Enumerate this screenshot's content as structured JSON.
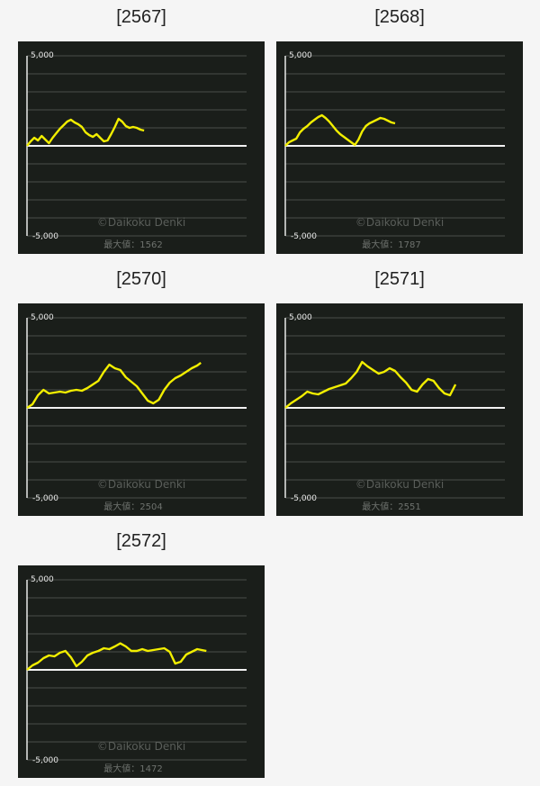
{
  "charts": [
    {
      "id": "2567",
      "title": "[2567]",
      "y_max_label": "5,000",
      "y_min_label": "-5,000",
      "watermark": "©Daikoku Denki",
      "max_label": "最大値：1562",
      "line_color": "#f2ee00"
    },
    {
      "id": "2568",
      "title": "[2568]",
      "y_max_label": "5,000",
      "y_min_label": "-5,000",
      "watermark": "©Daikoku Denki",
      "max_label": "最大値：1787",
      "line_color": "#f2ee00"
    },
    {
      "id": "2570",
      "title": "[2570]",
      "y_max_label": "5,000",
      "y_min_label": "-5,000",
      "watermark": "©Daikoku Denki",
      "max_label": "最大値：2504",
      "line_color": "#f2ee00"
    },
    {
      "id": "2571",
      "title": "[2571]",
      "y_max_label": "5,000",
      "y_min_label": "-5,000",
      "watermark": "©Daikoku Denki",
      "max_label": "最大値：2551",
      "line_color": "#f2ee00"
    },
    {
      "id": "2572",
      "title": "[2572]",
      "y_max_label": "5,000",
      "y_min_label": "-5,000",
      "watermark": "©Daikoku Denki",
      "max_label": "最大値：1472",
      "line_color": "#f2ee00"
    }
  ],
  "chart_data": [
    {
      "type": "line",
      "title": "[2567]",
      "ylim": [
        -5000,
        5000
      ],
      "grid": true,
      "series": [
        {
          "x": [
            0,
            4,
            8,
            12,
            16,
            20,
            24,
            28,
            32,
            36,
            40,
            44,
            48,
            52,
            56,
            60,
            64,
            68,
            72,
            76,
            80,
            84,
            88,
            92,
            96,
            100,
            104,
            108,
            112,
            116,
            120,
            124,
            128
          ],
          "y": [
            0,
            250,
            450,
            300,
            550,
            350,
            150,
            450,
            700,
            950,
            1150,
            1350,
            1450,
            1300,
            1200,
            1050,
            750,
            600,
            500,
            650,
            450,
            250,
            300,
            650,
            1050,
            1500,
            1350,
            1100,
            1000,
            1050,
            1000,
            900,
            850
          ]
        }
      ]
    },
    {
      "type": "line",
      "title": "[2568]",
      "ylim": [
        -5000,
        5000
      ],
      "grid": true,
      "series": [
        {
          "x": [
            0,
            4,
            8,
            12,
            16,
            20,
            24,
            28,
            32,
            36,
            40,
            44,
            48,
            52,
            56,
            60,
            64,
            68,
            72,
            76,
            80,
            84,
            88,
            92,
            96,
            100,
            104,
            108,
            112,
            116,
            120
          ],
          "y": [
            0,
            200,
            300,
            400,
            750,
            950,
            1100,
            1300,
            1450,
            1600,
            1700,
            1550,
            1350,
            1100,
            850,
            650,
            500,
            350,
            200,
            50,
            350,
            800,
            1100,
            1250,
            1350,
            1450,
            1550,
            1500,
            1400,
            1300,
            1250
          ]
        }
      ]
    },
    {
      "type": "line",
      "title": "[2570]",
      "ylim": [
        -5000,
        5000
      ],
      "grid": true,
      "series": [
        {
          "x": [
            0,
            6,
            12,
            18,
            24,
            30,
            36,
            42,
            48,
            54,
            60,
            66,
            72,
            78,
            84,
            90,
            96,
            102,
            108,
            114,
            120,
            126,
            132,
            138,
            144,
            150,
            156,
            162,
            168,
            174,
            180,
            186,
            190
          ],
          "y": [
            0,
            200,
            700,
            1000,
            800,
            850,
            900,
            850,
            950,
            1000,
            950,
            1100,
            1300,
            1500,
            2000,
            2400,
            2200,
            2100,
            1700,
            1450,
            1200,
            800,
            400,
            250,
            450,
            1000,
            1400,
            1650,
            1800,
            2000,
            2200,
            2350,
            2504
          ]
        }
      ]
    },
    {
      "type": "line",
      "title": "[2571]",
      "ylim": [
        -5000,
        5000
      ],
      "grid": true,
      "series": [
        {
          "x": [
            0,
            6,
            12,
            18,
            24,
            30,
            36,
            42,
            48,
            54,
            60,
            66,
            72,
            78,
            84,
            90,
            96,
            102,
            108,
            114,
            120,
            126,
            132,
            138,
            144,
            150,
            156,
            162,
            168,
            174,
            180,
            186
          ],
          "y": [
            0,
            250,
            450,
            650,
            900,
            800,
            750,
            900,
            1050,
            1150,
            1250,
            1350,
            1650,
            2000,
            2551,
            2300,
            2100,
            1900,
            2000,
            2200,
            2050,
            1700,
            1400,
            1000,
            900,
            1300,
            1600,
            1500,
            1100,
            800,
            700,
            1300
          ]
        }
      ]
    },
    {
      "type": "line",
      "title": "[2572]",
      "ylim": [
        -5000,
        5000
      ],
      "grid": true,
      "series": [
        {
          "x": [
            0,
            6,
            12,
            18,
            24,
            30,
            36,
            42,
            48,
            54,
            60,
            66,
            72,
            78,
            84,
            90,
            96,
            102,
            108,
            114,
            120,
            126,
            132,
            138,
            144,
            150,
            156,
            162,
            168,
            174,
            180,
            186,
            196
          ],
          "y": [
            0,
            250,
            400,
            650,
            800,
            750,
            950,
            1050,
            700,
            200,
            450,
            800,
            950,
            1050,
            1200,
            1150,
            1300,
            1472,
            1300,
            1050,
            1050,
            1150,
            1050,
            1100,
            1150,
            1200,
            1000,
            350,
            450,
            850,
            1000,
            1150,
            1050
          ]
        }
      ]
    }
  ]
}
